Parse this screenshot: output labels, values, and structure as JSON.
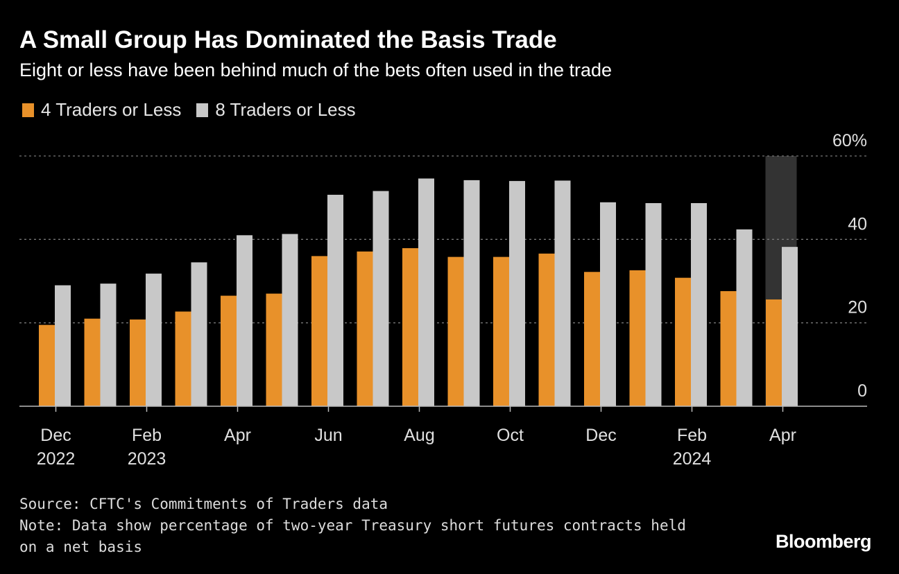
{
  "title": "A Small Group Has Dominated the Basis Trade",
  "subtitle": "Eight or less have been behind much of the bets often used in the trade",
  "legend": [
    {
      "label": "4 Traders or Less",
      "color": "#e8912a"
    },
    {
      "label": "8 Traders or Less",
      "color": "#c8c8c8"
    }
  ],
  "footer": {
    "source": "Source: CFTC's Commitments of Traders data",
    "note_line1": "Note: Data show percentage of two-year Treasury short futures contracts held",
    "note_line2": "on a net basis"
  },
  "brand": "Bloomberg",
  "chart_data": {
    "type": "bar",
    "categories": [
      "Dec 2022",
      "Jan 2023",
      "Feb 2023",
      "Mar 2023",
      "Apr 2023",
      "May 2023",
      "Jun 2023",
      "Jul 2023",
      "Aug 2023",
      "Sep 2023",
      "Oct 2023",
      "Nov 2023",
      "Dec 2023",
      "Jan 2024",
      "Feb 2024",
      "Mar 2024",
      "Apr 2024"
    ],
    "x_tick_labels": [
      {
        "index": 0,
        "line1": "Dec",
        "line2": "2022"
      },
      {
        "index": 2,
        "line1": "Feb",
        "line2": "2023"
      },
      {
        "index": 4,
        "line1": "Apr",
        "line2": ""
      },
      {
        "index": 6,
        "line1": "Jun",
        "line2": ""
      },
      {
        "index": 8,
        "line1": "Aug",
        "line2": ""
      },
      {
        "index": 10,
        "line1": "Oct",
        "line2": ""
      },
      {
        "index": 12,
        "line1": "Dec",
        "line2": ""
      },
      {
        "index": 14,
        "line1": "Feb",
        "line2": "2024"
      },
      {
        "index": 16,
        "line1": "Apr",
        "line2": ""
      }
    ],
    "series": [
      {
        "name": "4 Traders or Less",
        "color": "#e8912a",
        "values": [
          19.5,
          21,
          20.8,
          22.7,
          26.5,
          27,
          36,
          37.1,
          37.9,
          35.8,
          35.8,
          36.6,
          32.2,
          32.6,
          30.8,
          27.6,
          25.6
        ]
      },
      {
        "name": "8 Traders or Less",
        "color": "#c8c8c8",
        "values": [
          29,
          29.4,
          31.8,
          34.5,
          41,
          41.3,
          50.7,
          51.6,
          54.6,
          54.2,
          54,
          54.1,
          48.9,
          48.7,
          48.7,
          42.4,
          38.2
        ]
      }
    ],
    "ylim": [
      0,
      60
    ],
    "y_ticks": [
      {
        "value": 0,
        "label": "0"
      },
      {
        "value": 20,
        "label": "20"
      },
      {
        "value": 40,
        "label": "40"
      },
      {
        "value": 60,
        "label": "60%"
      }
    ],
    "highlight_index": 16,
    "highlight_color": "#333333",
    "grid": true,
    "legend_position": "top-left",
    "axis_color": "#bbbbbb",
    "grid_color": "#777777"
  }
}
